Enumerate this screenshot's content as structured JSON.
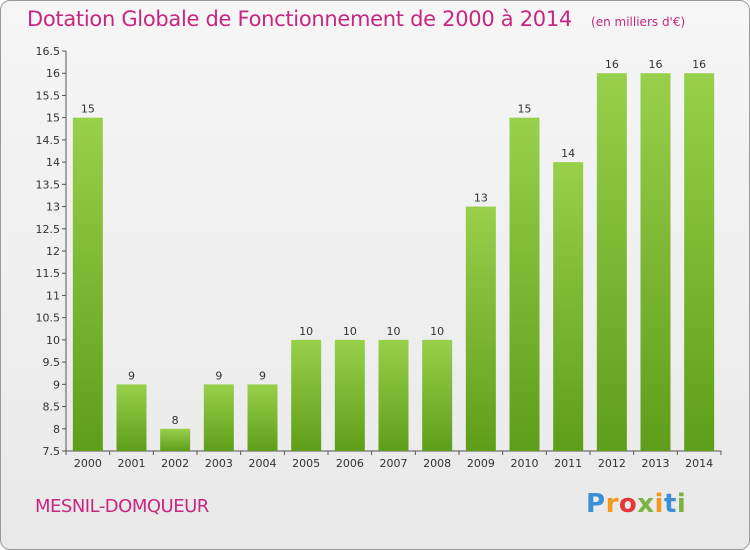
{
  "header": {
    "title": "Dotation Globale de Fonctionnement de 2000 à 2014",
    "unit": "(en milliers d'€)"
  },
  "footer": {
    "commune": "MESNIL-DOMQUEUR",
    "logo": [
      "P",
      "r",
      "o",
      "x",
      "i",
      "t",
      "i"
    ],
    "logo_colors": [
      "#3a8fd6",
      "#f39a1e",
      "#e53935",
      "#7cb342",
      "#f39a1e",
      "#3a8fd6",
      "#7cb342"
    ]
  },
  "colors": {
    "title": "#c8277f",
    "bar_light": "#98d04b",
    "bar_dark": "#5f9e1a"
  },
  "chart_data": {
    "type": "bar",
    "title": "Dotation Globale de Fonctionnement de 2000 à 2014",
    "categories": [
      "2000",
      "2001",
      "2002",
      "2003",
      "2004",
      "2005",
      "2006",
      "2007",
      "2008",
      "2009",
      "2010",
      "2011",
      "2012",
      "2013",
      "2014"
    ],
    "values": [
      15,
      9,
      8,
      9,
      9,
      10,
      10,
      10,
      10,
      13,
      15,
      14,
      16,
      16,
      16
    ],
    "ylim": [
      7.5,
      16.5
    ],
    "yticks": [
      "7.5",
      "8",
      "8.5",
      "9",
      "9.5",
      "10",
      "10.5",
      "11",
      "11.5",
      "12",
      "12.5",
      "13",
      "13.5",
      "14",
      "14.5",
      "15",
      "15.5",
      "16",
      "16.5"
    ],
    "xlabel": "",
    "ylabel": "",
    "grid": false,
    "legend": "none"
  }
}
